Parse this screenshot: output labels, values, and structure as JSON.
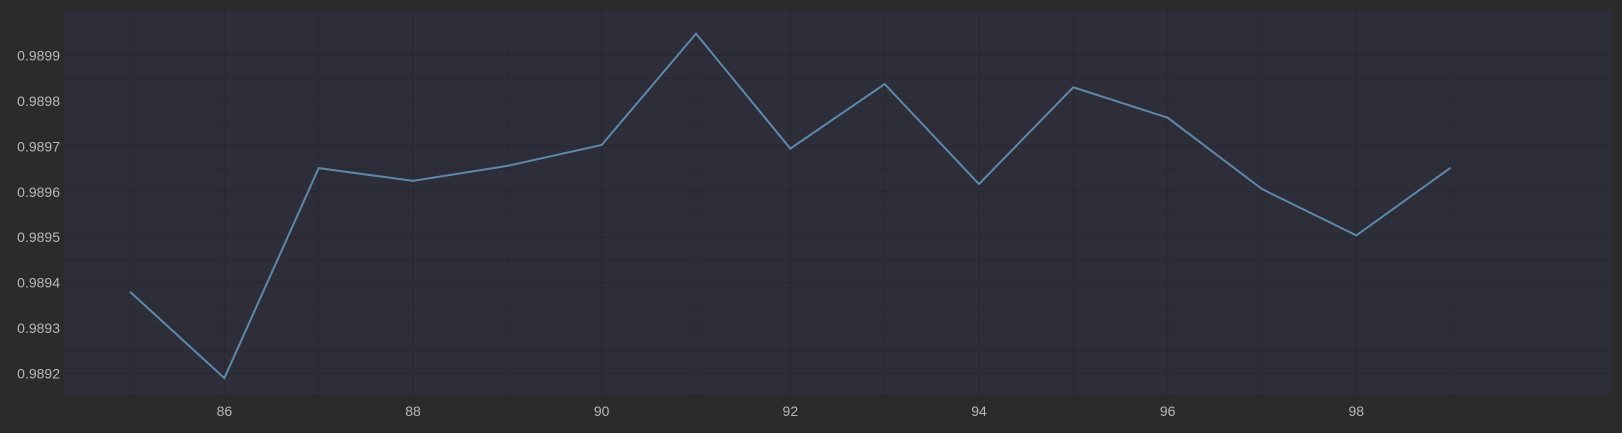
{
  "colors": {
    "background": "#2b2b2b",
    "plot_background": "#2e2e3b",
    "grid": "#282833",
    "line": "#5f88a8",
    "tick_text": "#b8b8b8"
  },
  "chart_data": {
    "type": "line",
    "title": "",
    "xlabel": "",
    "ylabel": "",
    "grid": true,
    "legend": "none",
    "xlim": [
      84.3,
      100.7
    ],
    "ylim": [
      0.989155,
      0.99
    ],
    "xticks": [
      86,
      88,
      90,
      92,
      94,
      96,
      98
    ],
    "xtick_labels": [
      "86",
      "88",
      "90",
      "92",
      "94",
      "96",
      "98"
    ],
    "yticks": [
      0.9892,
      0.9893,
      0.9894,
      0.9895,
      0.9896,
      0.9897,
      0.9898,
      0.9899
    ],
    "ytick_labels": [
      "0.9892",
      "0.9893",
      "0.9894",
      "0.9895",
      "0.9896",
      "0.9897",
      "0.9898",
      "0.9899"
    ],
    "series": [
      {
        "x": [
          85,
          86,
          87,
          88,
          89,
          90,
          91,
          92,
          93,
          94,
          95,
          96,
          97,
          98,
          99
        ],
        "y": [
          0.98938,
          0.98919,
          0.989652,
          0.989624,
          0.989657,
          0.989703,
          0.989948,
          0.989695,
          0.989837,
          0.989617,
          0.98983,
          0.989763,
          0.989606,
          0.989504,
          0.989653
        ]
      }
    ]
  }
}
